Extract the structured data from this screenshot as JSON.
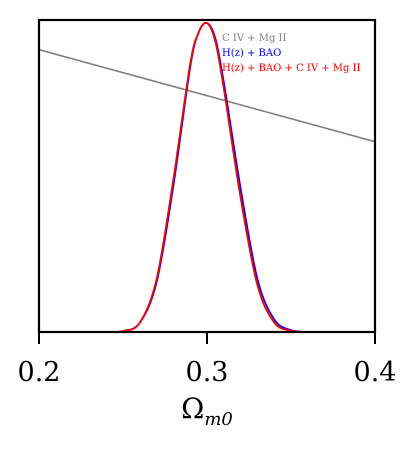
{
  "chart_data": {
    "type": "line",
    "xlabel": "Ω",
    "xlabel_sub": "m0",
    "xlim": [
      0.2,
      0.4
    ],
    "ylim": [
      0,
      1.0
    ],
    "x_ticks": [
      0.2,
      0.3,
      0.4
    ],
    "x_tick_labels": [
      "0.2",
      "0.3",
      "0.4"
    ],
    "y_ticks_shown": false,
    "grid": false,
    "legend": "top-right",
    "series": [
      {
        "name": "C IV + Mg II",
        "color": "#808080",
        "x": [
          0.2,
          0.4
        ],
        "y": [
          0.905,
          0.61
        ]
      },
      {
        "name": "H(z) + BAO",
        "color": "#0000ff",
        "x": [
          0.24,
          0.25,
          0.26,
          0.27,
          0.28,
          0.29,
          0.295,
          0.3,
          0.305,
          0.31,
          0.32,
          0.33,
          0.34,
          0.35,
          0.36,
          0.37
        ],
        "y": [
          0.0,
          0.003,
          0.03,
          0.16,
          0.47,
          0.85,
          0.96,
          0.99,
          0.94,
          0.8,
          0.46,
          0.17,
          0.04,
          0.006,
          0.0,
          0.0
        ]
      },
      {
        "name": "H(z) + BAO + C IV + Mg II",
        "color": "#ff0000",
        "x": [
          0.24,
          0.25,
          0.26,
          0.27,
          0.28,
          0.29,
          0.295,
          0.3,
          0.305,
          0.31,
          0.32,
          0.33,
          0.34,
          0.35,
          0.36,
          0.37
        ],
        "y": [
          0.0,
          0.003,
          0.03,
          0.17,
          0.49,
          0.86,
          0.96,
          0.99,
          0.93,
          0.78,
          0.43,
          0.15,
          0.03,
          0.004,
          0.0,
          0.0
        ]
      }
    ]
  }
}
